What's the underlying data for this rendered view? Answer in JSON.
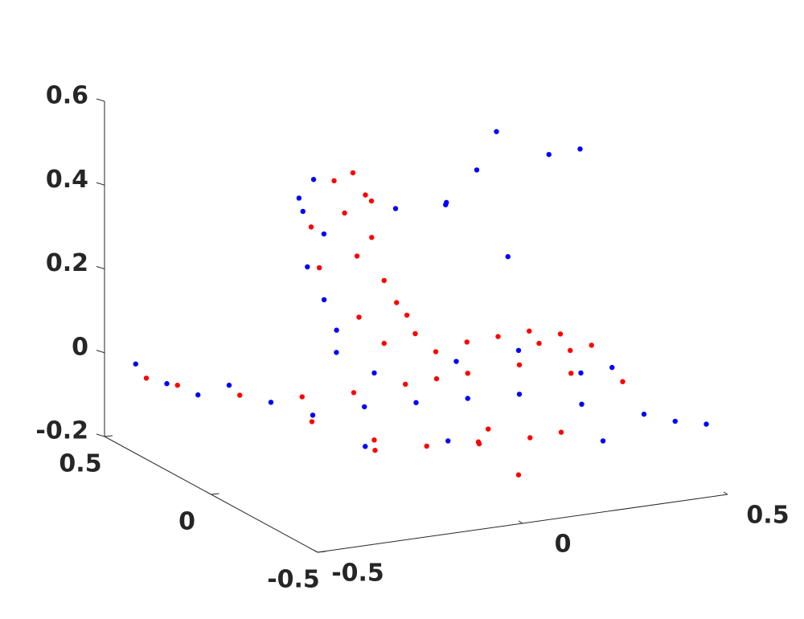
{
  "chart_data": {
    "type": "scatter3d",
    "xlim": [
      -0.5,
      0.5
    ],
    "ylim": [
      -0.5,
      0.5
    ],
    "zlim": [
      -0.2,
      0.6
    ],
    "xticks": [
      -0.5,
      0,
      0.5
    ],
    "yticks": [
      -0.5,
      0,
      0.5
    ],
    "zticks": [
      -0.2,
      0,
      0.2,
      0.4,
      0.6
    ],
    "series": [
      {
        "color": "#ff0000",
        "x": [
          -0.05,
          -0.03,
          -0.06,
          -0.02,
          -0.04,
          0,
          0.02,
          0.04,
          -0.03,
          0.05,
          -0.07,
          -0.01,
          0.1,
          0.15,
          0.2,
          0.25,
          0.3,
          0.35,
          0.05,
          0.1,
          0.2,
          0.3,
          0.4,
          0.0,
          -0.1,
          -0.2,
          -0.3,
          -0.4,
          -0.45,
          -0.1,
          0.0,
          0.1,
          0.2,
          0.05,
          -0.05,
          0.15,
          0.25,
          -0.15,
          0.12,
          0.3,
          0.35,
          0.0,
          -0.1,
          -0.08
        ],
        "y": [
          0.2,
          0.18,
          0.22,
          0.17,
          0.2,
          0.15,
          0.13,
          0.12,
          0.21,
          0.1,
          0.25,
          0.19,
          0.1,
          0.05,
          0.0,
          -0.05,
          -0.1,
          -0.15,
          0.0,
          -0.05,
          -0.1,
          -0.15,
          -0.2,
          0.05,
          0.1,
          0.15,
          0.25,
          0.35,
          0.4,
          0.0,
          -0.05,
          -0.1,
          -0.15,
          -0.2,
          0.1,
          -0.05,
          -0.2,
          0.2,
          -0.25,
          0.0,
          -0.05,
          0.15,
          0.3,
          0.3
        ],
        "z": [
          0.45,
          0.4,
          0.35,
          0.3,
          0.25,
          0.2,
          0.15,
          0.12,
          0.1,
          0.08,
          0.42,
          0.38,
          0.03,
          0.06,
          0.08,
          0.1,
          0.1,
          0.08,
          0.0,
          0.02,
          0.04,
          0.02,
          0.0,
          -0.02,
          -0.04,
          -0.05,
          -0.06,
          -0.05,
          -0.04,
          -0.15,
          -0.14,
          -0.13,
          -0.12,
          -0.1,
          -0.16,
          -0.12,
          -0.1,
          -0.13,
          -0.17,
          0.05,
          0.04,
          0.05,
          0.3,
          0.2
        ]
      },
      {
        "color": "#0000ff",
        "x": [
          -0.12,
          -0.14,
          -0.1,
          -0.13,
          -0.11,
          -0.09,
          -0.12,
          -0.08,
          -0.45,
          -0.4,
          -0.35,
          -0.3,
          -0.25,
          -0.2,
          -0.1,
          0.0,
          0.1,
          0.2,
          0.3,
          0.4,
          0.45,
          0.5,
          0.35,
          0.4,
          0.25,
          0.15,
          -0.05,
          0.0,
          -0.15,
          0.3,
          0.2,
          0.3,
          0.1,
          -0.05,
          0.35,
          0.4,
          0.15,
          0.25
        ],
        "y": [
          0.25,
          0.28,
          0.24,
          0.26,
          0.22,
          0.2,
          0.3,
          0.22,
          0.45,
          0.4,
          0.35,
          0.3,
          0.2,
          0.1,
          0.05,
          0.0,
          -0.05,
          -0.1,
          -0.2,
          -0.3,
          -0.35,
          -0.4,
          -0.1,
          -0.15,
          0.0,
          0.1,
          0.1,
          -0.15,
          -0.05,
          -0.3,
          0.1,
          0.2,
          0.05,
          0.0,
          0.05,
          0.0,
          0.15,
          0.05
        ],
        "z": [
          0.43,
          0.38,
          0.3,
          0.22,
          0.15,
          0.08,
          0.34,
          0.02,
          -0.02,
          -0.06,
          -0.08,
          -0.05,
          -0.07,
          -0.08,
          -0.06,
          -0.05,
          -0.04,
          -0.03,
          -0.04,
          -0.05,
          -0.06,
          -0.06,
          0.0,
          0.02,
          0.04,
          0.0,
          0.0,
          -0.1,
          -0.12,
          -0.1,
          0.45,
          0.5,
          0.4,
          0.42,
          0.48,
          0.5,
          0.36,
          0.25
        ]
      }
    ]
  }
}
